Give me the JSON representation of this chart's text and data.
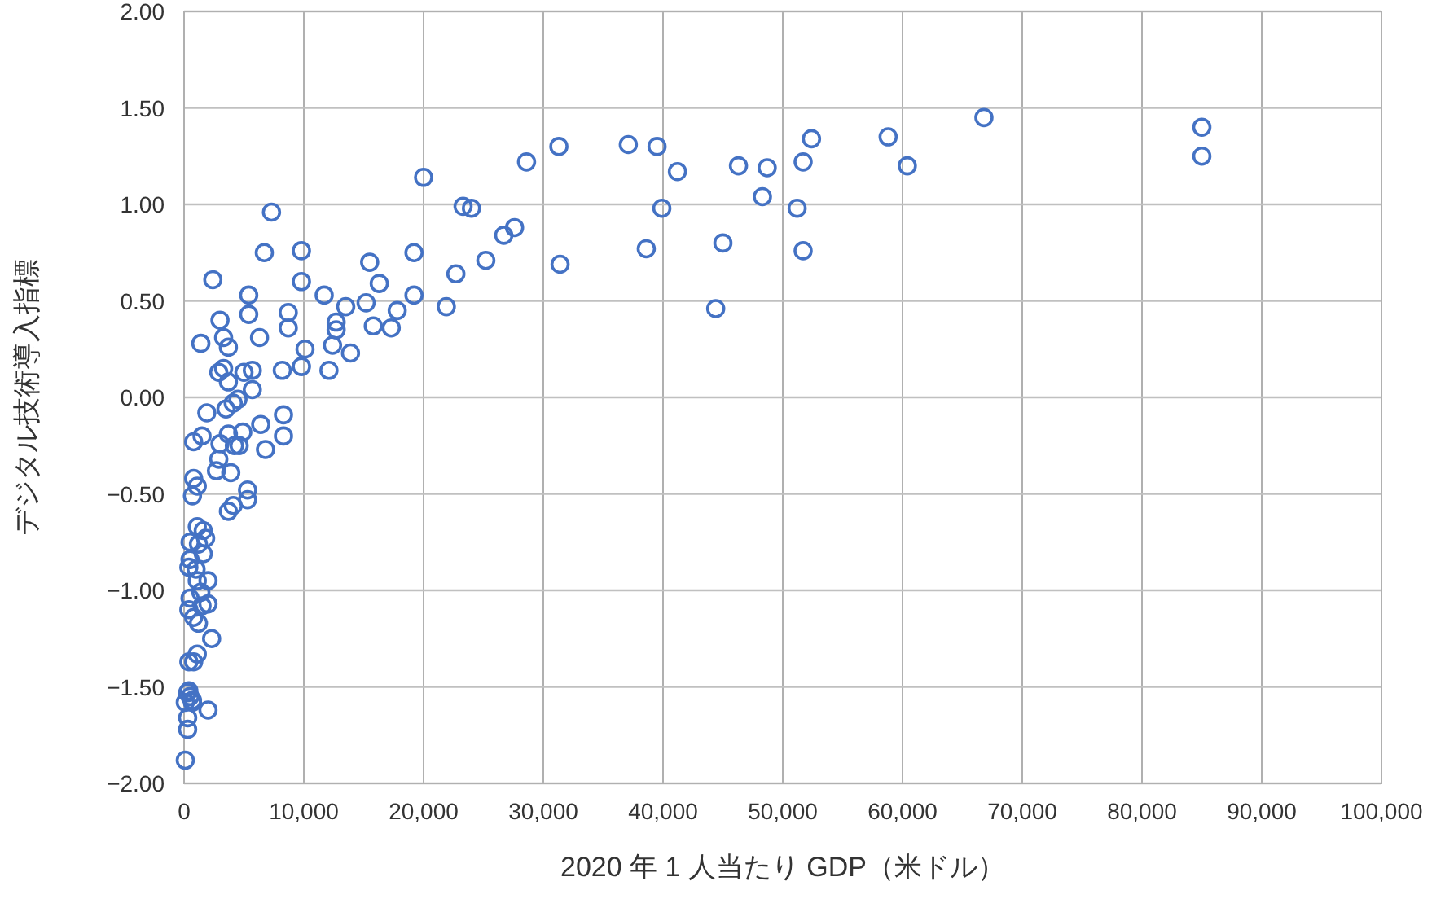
{
  "chart_data": {
    "type": "scatter",
    "xlabel": "2020 年 1 人当たり GDP（米ドル）",
    "ylabel": "デジタル技術導入指標",
    "color": "#4472c4",
    "marker": "circle",
    "grid": true,
    "xlim": [
      0,
      100000
    ],
    "ylim": [
      -2,
      2
    ],
    "xticks": [
      {
        "value": 0,
        "label": "0"
      },
      {
        "value": 10000,
        "label": "10,000"
      },
      {
        "value": 20000,
        "label": "20,000"
      },
      {
        "value": 30000,
        "label": "30,000"
      },
      {
        "value": 40000,
        "label": "40,000"
      },
      {
        "value": 50000,
        "label": "50,000"
      },
      {
        "value": 60000,
        "label": "60,000"
      },
      {
        "value": 70000,
        "label": "70,000"
      },
      {
        "value": 80000,
        "label": "80,000"
      },
      {
        "value": 90000,
        "label": "90,000"
      },
      {
        "value": 100000,
        "label": "100,000"
      }
    ],
    "yticks": [
      {
        "value": 2,
        "label": "2.00"
      },
      {
        "value": 1.5,
        "label": "1.50"
      },
      {
        "value": 1,
        "label": "1.00"
      },
      {
        "value": 0.5,
        "label": "0.50"
      },
      {
        "value": 0,
        "label": "0.00"
      },
      {
        "value": -0.5,
        "label": "−0.50"
      },
      {
        "value": -1,
        "label": "−1.00"
      },
      {
        "value": -1.5,
        "label": "−1.50"
      },
      {
        "value": -2,
        "label": "−2.00"
      }
    ],
    "x": [
      85000,
      85000,
      66800,
      58800,
      60400,
      52400,
      51700,
      51200,
      51700,
      48700,
      48300,
      46300,
      45000,
      44400,
      41200,
      39900,
      39500,
      38600,
      37100,
      31400,
      31300,
      28600,
      27600,
      26700,
      25200,
      24000,
      23300,
      22700,
      21900,
      20000,
      19200,
      19200,
      17800,
      17300,
      16300,
      15800,
      15500,
      15200,
      13900,
      13500,
      12700,
      12700,
      12400,
      12100,
      11700,
      10100,
      9800,
      9800,
      9800,
      8700,
      8700,
      8200,
      8300,
      8300,
      7300,
      6700,
      6300,
      5400,
      5400,
      5700,
      5700,
      5000,
      6400,
      6800,
      5300,
      5300,
      4900,
      4600,
      4200,
      4500,
      4100,
      3900,
      4100,
      3700,
      3700,
      3500,
      3700,
      3300,
      3700,
      3300,
      3000,
      2900,
      3000,
      2900,
      2700,
      2400,
      1900,
      1400,
      1500,
      800,
      800,
      1100,
      700,
      2300,
      2000,
      1100,
      1600,
      1800,
      1200,
      1600,
      500,
      500,
      400,
      1000,
      1100,
      2000,
      1400,
      500,
      2000,
      400,
      800,
      1200,
      1500,
      1100,
      800,
      400,
      300,
      500,
      100,
      700,
      300,
      300,
      100,
      400,
      700
    ],
    "values": [
      1.4,
      1.25,
      1.45,
      1.35,
      1.2,
      1.34,
      1.22,
      0.98,
      0.76,
      1.19,
      1.04,
      1.2,
      0.8,
      0.46,
      1.17,
      0.98,
      1.3,
      0.77,
      1.31,
      0.69,
      1.3,
      1.22,
      0.88,
      0.84,
      0.71,
      0.98,
      0.99,
      0.64,
      0.47,
      1.14,
      0.75,
      0.53,
      0.45,
      0.36,
      0.59,
      0.37,
      0.7,
      0.49,
      0.23,
      0.47,
      0.39,
      0.35,
      0.27,
      0.14,
      0.53,
      0.25,
      0.16,
      0.6,
      0.76,
      0.44,
      0.36,
      0.14,
      -0.09,
      -0.2,
      0.96,
      0.75,
      0.31,
      0.53,
      0.43,
      0.14,
      0.04,
      0.13,
      -0.14,
      -0.27,
      -0.48,
      -0.53,
      -0.18,
      -0.25,
      -0.25,
      -0.01,
      -0.03,
      -0.39,
      -0.56,
      -0.59,
      -0.19,
      -0.06,
      0.08,
      0.15,
      0.26,
      0.31,
      0.4,
      0.13,
      -0.24,
      -0.32,
      -0.38,
      0.61,
      -0.08,
      0.28,
      -0.2,
      -0.23,
      -0.42,
      -0.46,
      -0.51,
      -1.25,
      -1.62,
      -0.67,
      -0.69,
      -0.73,
      -0.76,
      -0.81,
      -0.75,
      -0.84,
      -0.88,
      -0.89,
      -0.95,
      -0.95,
      -1.01,
      -1.04,
      -1.07,
      -1.1,
      -1.14,
      -1.17,
      -1.08,
      -1.33,
      -1.37,
      -1.37,
      -1.53,
      -1.55,
      -1.58,
      -1.58,
      -1.66,
      -1.72,
      -1.88,
      -1.52,
      -1.57
    ]
  }
}
